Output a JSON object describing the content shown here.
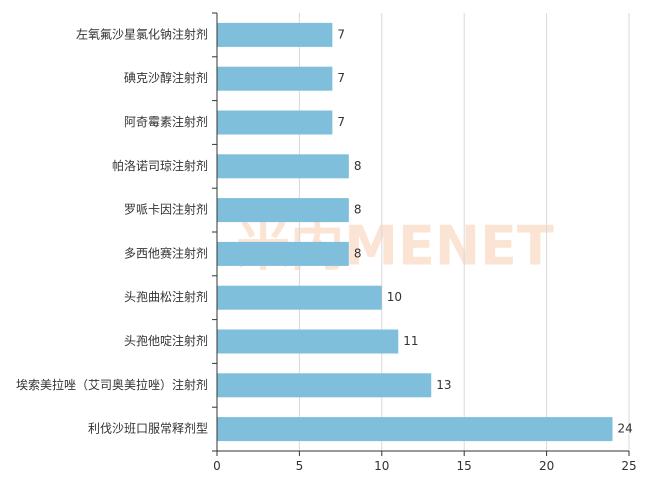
{
  "chart_data": {
    "type": "bar",
    "orientation": "horizontal",
    "categories": [
      "左氧氟沙星氯化钠注射剂",
      "碘克沙醇注射剂",
      "阿奇霉素注射剂",
      "帕洛诺司琼注射剂",
      "罗哌卡因注射剂",
      "多西他赛注射剂",
      "头孢曲松注射剂",
      "头孢他啶注射剂",
      "埃索美拉唑（艾司奥美拉唑）注射剂",
      "利伐沙班口服常释剂型"
    ],
    "values": [
      7,
      7,
      7,
      8,
      8,
      8,
      10,
      11,
      13,
      24
    ],
    "xlim": [
      0,
      25
    ],
    "xticks": [
      "0",
      "5",
      "10",
      "15",
      "20",
      "25"
    ],
    "grid": true,
    "title": "",
    "xlabel": "",
    "ylabel": "",
    "watermark": "米内MENET",
    "colors": {
      "bar": "#7fbfdc",
      "grid": "#d9d9d9",
      "axis": "#333333",
      "text": "#333333",
      "watermark": "#fbe4d3"
    }
  }
}
